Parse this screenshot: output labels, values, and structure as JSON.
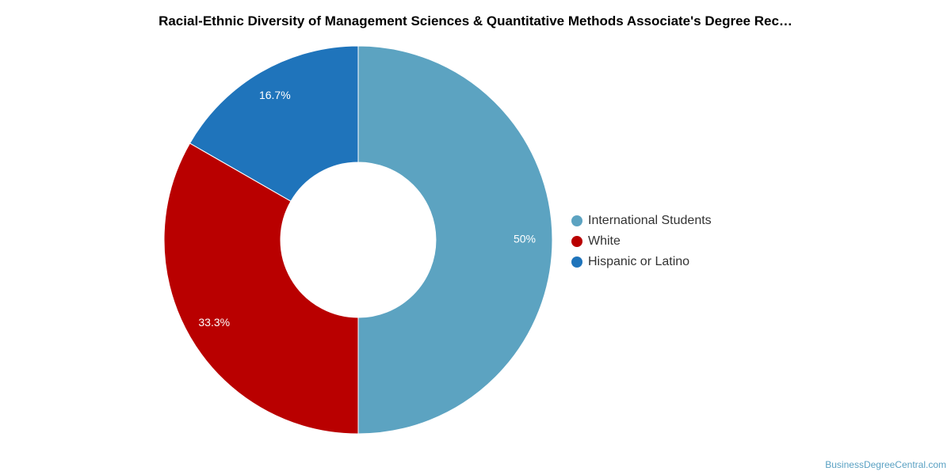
{
  "chart_data": {
    "type": "pie",
    "title": "Racial-Ethnic Diversity of Management Sciences & Quantitative Methods Associate's Degree Rec…",
    "donut": true,
    "legend_position": "right",
    "slices": [
      {
        "label": "International Students",
        "value": 50,
        "display": "50%",
        "color": "#5ca3c1"
      },
      {
        "label": "White",
        "value": 33.3,
        "display": "33.3%",
        "color": "#b90000"
      },
      {
        "label": "Hispanic or Latino",
        "value": 16.7,
        "display": "16.7%",
        "color": "#1f74bb"
      }
    ]
  },
  "watermark": "BusinessDegreeCentral.com"
}
